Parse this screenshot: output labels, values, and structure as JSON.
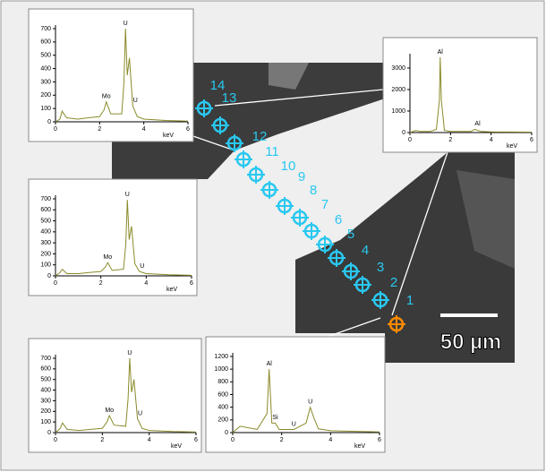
{
  "chart_data": [
    {
      "type": "line",
      "xlabel": "keV",
      "color": "#8a8a2a",
      "x": [
        0,
        0.2,
        0.3,
        0.5,
        1,
        1.5,
        2,
        2.2,
        2.3,
        2.5,
        3,
        3.1,
        3.17,
        3.25,
        3.35,
        3.5,
        3.7,
        4,
        5,
        6
      ],
      "values": [
        0,
        20,
        80,
        30,
        20,
        30,
        40,
        90,
        150,
        60,
        60,
        300,
        700,
        350,
        480,
        120,
        40,
        20,
        10,
        5
      ],
      "annotations": [
        "U",
        "Mo",
        "U"
      ],
      "xlim": [
        0,
        6
      ],
      "xticks": [
        0,
        2,
        4,
        6
      ],
      "ylim": [
        0,
        700
      ],
      "yticks": [
        0,
        100,
        200,
        300,
        400,
        500,
        600,
        700
      ]
    },
    {
      "type": "line",
      "xlabel": "keV",
      "color": "#8a8a2a",
      "x": [
        0,
        0.3,
        0.5,
        1,
        1.3,
        1.45,
        1.49,
        1.55,
        1.7,
        2,
        3,
        3.2,
        3.5,
        4,
        6
      ],
      "values": [
        0,
        100,
        50,
        50,
        150,
        1500,
        3500,
        1500,
        100,
        50,
        50,
        150,
        50,
        30,
        20
      ],
      "annotations": [
        "Al",
        "Al"
      ],
      "xlim": [
        0,
        6
      ],
      "xticks": [
        0,
        2,
        4,
        6
      ],
      "ylim": [
        0,
        3500
      ],
      "yticks": [
        0,
        1000,
        2000,
        3000
      ]
    },
    {
      "type": "line",
      "xlabel": "keV",
      "color": "#8a8a2a",
      "x": [
        0,
        0.2,
        0.3,
        0.5,
        1,
        1.5,
        2,
        2.2,
        2.3,
        2.5,
        3,
        3.1,
        3.17,
        3.25,
        3.35,
        3.5,
        3.7,
        4,
        5,
        6
      ],
      "values": [
        0,
        30,
        60,
        20,
        20,
        30,
        40,
        80,
        120,
        50,
        60,
        280,
        690,
        330,
        450,
        110,
        40,
        20,
        10,
        5
      ],
      "annotations": [
        "U",
        "Mo",
        "U"
      ],
      "xlim": [
        0,
        6
      ],
      "xticks": [
        0,
        2,
        4,
        6
      ],
      "ylim": [
        0,
        700
      ],
      "yticks": [
        0,
        100,
        200,
        300,
        400,
        500,
        600,
        700
      ]
    },
    {
      "type": "line",
      "xlabel": "keV",
      "color": "#8a8a2a",
      "x": [
        0,
        0.2,
        0.3,
        0.5,
        1,
        1.5,
        2,
        2.2,
        2.3,
        2.5,
        3,
        3.1,
        3.17,
        3.25,
        3.35,
        3.5,
        3.7,
        4,
        5,
        6
      ],
      "values": [
        0,
        40,
        90,
        30,
        20,
        30,
        40,
        100,
        160,
        70,
        60,
        320,
        700,
        380,
        500,
        130,
        40,
        20,
        10,
        5
      ],
      "annotations": [
        "U",
        "Mo",
        "U"
      ],
      "xlim": [
        0,
        6
      ],
      "xticks": [
        0,
        2,
        4,
        6
      ],
      "ylim": [
        0,
        700
      ],
      "yticks": [
        0,
        100,
        200,
        300,
        400,
        500,
        600,
        700
      ]
    },
    {
      "type": "line",
      "xlabel": "keV",
      "color": "#8a8a2a",
      "x": [
        0,
        0.3,
        1,
        1.4,
        1.49,
        1.6,
        1.74,
        1.9,
        2.5,
        3.0,
        3.17,
        3.3,
        3.5,
        4,
        6
      ],
      "values": [
        0,
        100,
        50,
        300,
        1000,
        150,
        150,
        50,
        50,
        150,
        400,
        250,
        60,
        30,
        10
      ],
      "annotations": [
        "Al",
        "Si",
        "U",
        "U"
      ],
      "xlim": [
        0,
        6
      ],
      "xticks": [
        0,
        2,
        4,
        6
      ],
      "ylim": [
        0,
        1200
      ],
      "yticks": [
        0,
        200,
        400,
        600,
        800,
        1000,
        1200
      ]
    }
  ],
  "image": {
    "point_labels": [
      "1",
      "2",
      "3",
      "4",
      "5",
      "6",
      "7",
      "8",
      "9",
      "10",
      "11",
      "12",
      "13",
      "14"
    ],
    "scale_bar": "50 µm"
  }
}
